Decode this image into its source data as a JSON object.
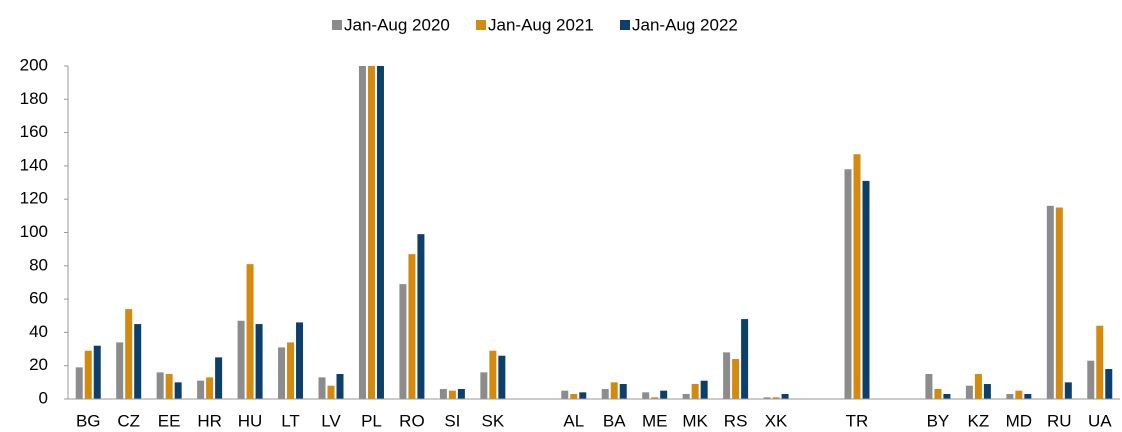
{
  "chart_data": {
    "type": "bar",
    "categories": [
      "BG",
      "CZ",
      "EE",
      "HR",
      "HU",
      "LT",
      "LV",
      "PL",
      "RO",
      "SI",
      "SK",
      null,
      "AL",
      "BA",
      "ME",
      "MK",
      "RS",
      "XK",
      null,
      "TR",
      null,
      "BY",
      "KZ",
      "MD",
      "RU",
      "UA"
    ],
    "series": [
      {
        "name": "Jan-Aug 2020",
        "color": "#8c8c8c",
        "values": [
          19,
          34,
          16,
          11,
          47,
          31,
          13,
          200,
          69,
          6,
          16,
          null,
          5,
          6,
          4,
          3,
          28,
          1,
          null,
          138,
          null,
          15,
          8,
          3,
          116,
          23
        ]
      },
      {
        "name": "Jan-Aug 2021",
        "color": "#d4890f",
        "values": [
          29,
          54,
          15,
          13,
          81,
          34,
          8,
          200,
          87,
          5,
          29,
          null,
          3,
          10,
          1,
          9,
          24,
          1,
          null,
          147,
          null,
          6,
          15,
          5,
          115,
          44
        ]
      },
      {
        "name": "Jan-Aug 2022",
        "color": "#0d3f6b",
        "values": [
          32,
          45,
          10,
          25,
          45,
          46,
          15,
          200,
          99,
          6,
          26,
          null,
          4,
          9,
          5,
          11,
          48,
          3,
          null,
          131,
          null,
          3,
          9,
          3,
          10,
          18
        ]
      }
    ],
    "ylim": [
      0,
      200
    ],
    "yticks": [
      0,
      20,
      40,
      60,
      80,
      100,
      120,
      140,
      160,
      180,
      200
    ],
    "legend": "top"
  }
}
